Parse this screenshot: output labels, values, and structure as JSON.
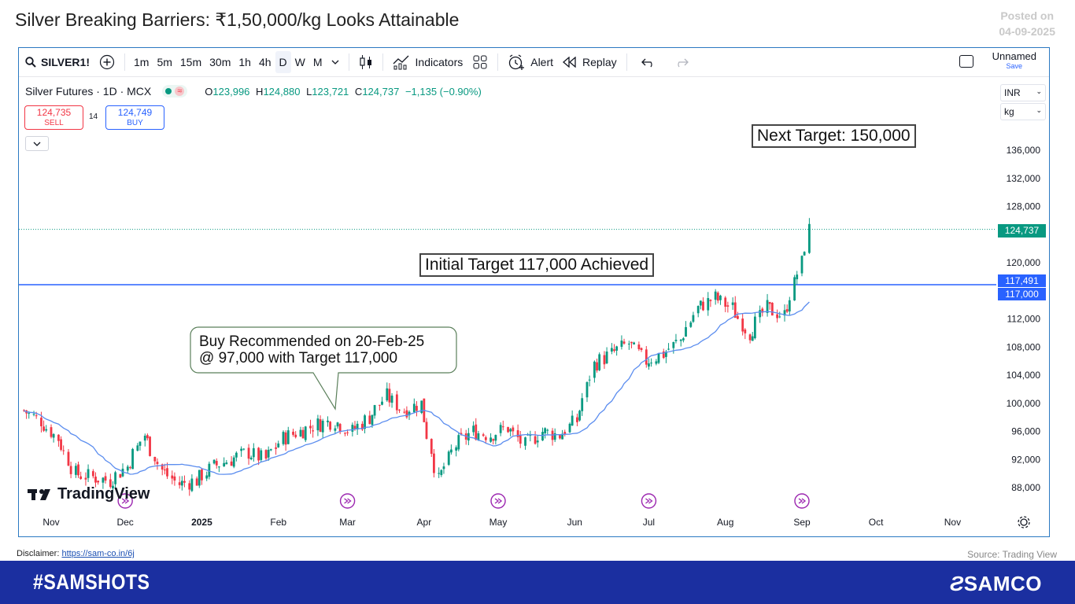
{
  "headline": "Silver Breaking Barriers: ₹1,50,000/kg Looks Attainable",
  "posted": {
    "line1": "Posted on",
    "line2": "04-09-2025"
  },
  "toolbar": {
    "symbol": "SILVER1!",
    "timeframes": [
      "1m",
      "5m",
      "15m",
      "30m",
      "1h",
      "4h",
      "D",
      "W",
      "M"
    ],
    "active_timeframe": "D",
    "indicators_label": "Indicators",
    "alert_label": "Alert",
    "replay_label": "Replay",
    "layout_name": "Unnamed",
    "save_label": "Save"
  },
  "legend": {
    "title": "Silver Futures · 1D · MCX",
    "open_label": "O",
    "open": "123,996",
    "high_label": "H",
    "high": "124,880",
    "low_label": "L",
    "low": "123,721",
    "close_label": "C",
    "close": "124,737",
    "change": "−1,135 (−0.90%)"
  },
  "trade": {
    "sell_price": "124,735",
    "sell_label": "SELL",
    "spread": "14",
    "buy_price": "124,749",
    "buy_label": "BUY"
  },
  "currency": {
    "value": "INR",
    "unit": "kg"
  },
  "annotations": {
    "next_target": "Next Target: 150,000",
    "initial_target": "Initial Target 117,000 Achieved",
    "buy_line1": "Buy Recommended on 20-Feb-25",
    "buy_line2": "@ 97,000 with Target 117,000"
  },
  "price_tags": {
    "last": "124,737",
    "line1": "117,491",
    "line2": "117,000"
  },
  "watermark": "TradingView",
  "disclaimer": {
    "label": "Disclaimer:",
    "link": "https://sam-co.in/6j"
  },
  "source": "Source: Trading View",
  "footer": {
    "hashtag": "#SAMSHOTS",
    "brand": "SAMCO"
  },
  "colors": {
    "up": "#089981",
    "down": "#f23645",
    "ma": "#5b8def",
    "hline": "#2962ff",
    "frame": "#2b79c2",
    "footer": "#1b2fa0"
  },
  "chart_data": {
    "type": "candlestick",
    "y_ticks": [
      88000,
      92000,
      96000,
      100000,
      104000,
      108000,
      112000,
      116000,
      120000,
      124000,
      128000,
      132000,
      136000
    ],
    "x_ticks": [
      "Nov",
      "Dec",
      "2025",
      "Feb",
      "Mar",
      "Apr",
      "May",
      "Jun",
      "Jul",
      "Aug",
      "Sep",
      "Oct",
      "Nov"
    ],
    "horizontal_line": 117000,
    "last_price": 124737,
    "closes_weekly": [
      {
        "x": "2024-10-21",
        "y": 99000
      },
      {
        "x": "2024-10-28",
        "y": 97500
      },
      {
        "x": "2024-11-04",
        "y": 95000
      },
      {
        "x": "2024-11-11",
        "y": 90000
      },
      {
        "x": "2024-11-18",
        "y": 89500
      },
      {
        "x": "2024-11-25",
        "y": 89000
      },
      {
        "x": "2024-12-02",
        "y": 91000
      },
      {
        "x": "2024-12-09",
        "y": 95500
      },
      {
        "x": "2024-12-16",
        "y": 90500
      },
      {
        "x": "2024-12-23",
        "y": 88500
      },
      {
        "x": "2024-12-30",
        "y": 89000
      },
      {
        "x": "2025-01-06",
        "y": 91000
      },
      {
        "x": "2025-01-13",
        "y": 92000
      },
      {
        "x": "2025-01-20",
        "y": 93000
      },
      {
        "x": "2025-01-27",
        "y": 92000
      },
      {
        "x": "2025-02-03",
        "y": 95000
      },
      {
        "x": "2025-02-10",
        "y": 96000
      },
      {
        "x": "2025-02-17",
        "y": 97000
      },
      {
        "x": "2025-02-24",
        "y": 97500
      },
      {
        "x": "2025-03-03",
        "y": 96000
      },
      {
        "x": "2025-03-10",
        "y": 98000
      },
      {
        "x": "2025-03-17",
        "y": 101000
      },
      {
        "x": "2025-03-24",
        "y": 99000
      },
      {
        "x": "2025-03-31",
        "y": 100000
      },
      {
        "x": "2025-04-07",
        "y": 89000
      },
      {
        "x": "2025-04-14",
        "y": 94000
      },
      {
        "x": "2025-04-21",
        "y": 96000
      },
      {
        "x": "2025-04-28",
        "y": 95500
      },
      {
        "x": "2025-05-05",
        "y": 96500
      },
      {
        "x": "2025-05-12",
        "y": 94000
      },
      {
        "x": "2025-05-19",
        "y": 96000
      },
      {
        "x": "2025-05-26",
        "y": 95500
      },
      {
        "x": "2025-06-02",
        "y": 97500
      },
      {
        "x": "2025-06-09",
        "y": 105500
      },
      {
        "x": "2025-06-16",
        "y": 107000
      },
      {
        "x": "2025-06-23",
        "y": 108500
      },
      {
        "x": "2025-06-30",
        "y": 106000
      },
      {
        "x": "2025-07-07",
        "y": 107000
      },
      {
        "x": "2025-07-14",
        "y": 109000
      },
      {
        "x": "2025-07-21",
        "y": 113500
      },
      {
        "x": "2025-07-28",
        "y": 115000
      },
      {
        "x": "2025-08-04",
        "y": 113500
      },
      {
        "x": "2025-08-11",
        "y": 110000
      },
      {
        "x": "2025-08-18",
        "y": 113500
      },
      {
        "x": "2025-08-25",
        "y": 112500
      },
      {
        "x": "2025-09-01",
        "y": 120000
      },
      {
        "x": "2025-09-04",
        "y": 124737
      }
    ]
  }
}
